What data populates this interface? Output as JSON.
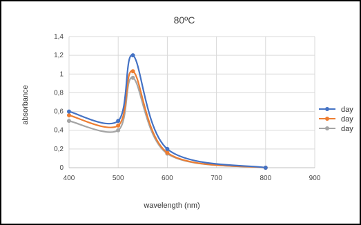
{
  "chart_data": {
    "type": "line",
    "title": "80ºC",
    "xlabel": "wavelength (nm)",
    "ylabel": "absorbance",
    "xlim": [
      400,
      900
    ],
    "ylim": [
      0,
      1.4
    ],
    "xticks": [
      400,
      500,
      600,
      700,
      800,
      900
    ],
    "yticks": [
      0,
      0.2,
      0.4,
      0.6,
      0.8,
      1,
      1.2,
      1.4
    ],
    "ytick_labels": [
      "0",
      "0,2",
      "0,4",
      "0,6",
      "0,8",
      "1",
      "1,2",
      "1,4"
    ],
    "xtick_labels": [
      "400",
      "500",
      "600",
      "700",
      "800",
      "900"
    ],
    "grid": true,
    "legend": "right",
    "series": [
      {
        "name": "day",
        "color": "#4472c4",
        "points": [
          [
            400,
            0.6
          ],
          [
            500,
            0.5
          ],
          [
            530,
            1.2
          ],
          [
            600,
            0.2
          ],
          [
            800,
            0.0
          ]
        ]
      },
      {
        "name": "day",
        "color": "#ed7d31",
        "points": [
          [
            400,
            0.56
          ],
          [
            500,
            0.45
          ],
          [
            530,
            1.03
          ],
          [
            600,
            0.16
          ],
          [
            800,
            0.0
          ]
        ]
      },
      {
        "name": "day",
        "color": "#a5a5a5",
        "points": [
          [
            400,
            0.5
          ],
          [
            500,
            0.4
          ],
          [
            530,
            0.96
          ],
          [
            600,
            0.15
          ],
          [
            800,
            0.0
          ]
        ]
      }
    ]
  }
}
